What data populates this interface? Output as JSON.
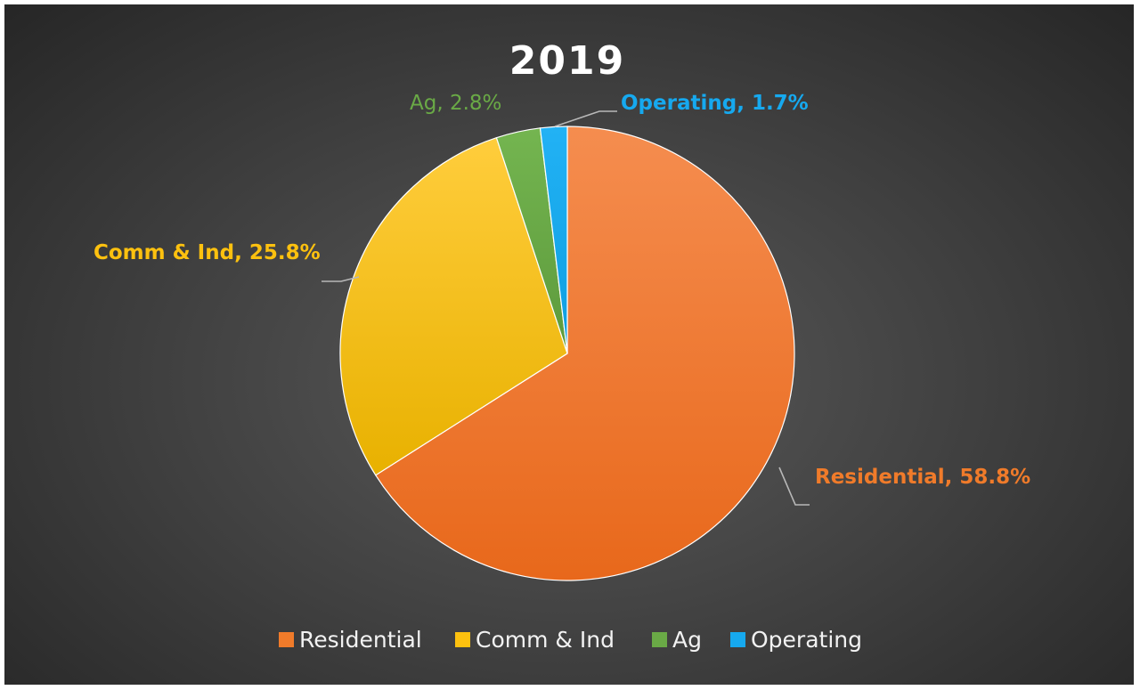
{
  "chart_data": {
    "type": "pie",
    "title": "2019",
    "categories": [
      "Residential",
      "Comm & Ind",
      "Ag",
      "Operating"
    ],
    "values": [
      58.8,
      25.8,
      2.8,
      1.7
    ],
    "data_labels": [
      "Residential, 58.8%",
      "Comm & Ind, 25.8%",
      "Ag, 2.8%",
      "Operating, 1.7%"
    ],
    "colors": [
      "#f07b2a",
      "#fdc10f",
      "#6aaa46",
      "#16a9ef"
    ],
    "legend_placement": "bottom"
  }
}
